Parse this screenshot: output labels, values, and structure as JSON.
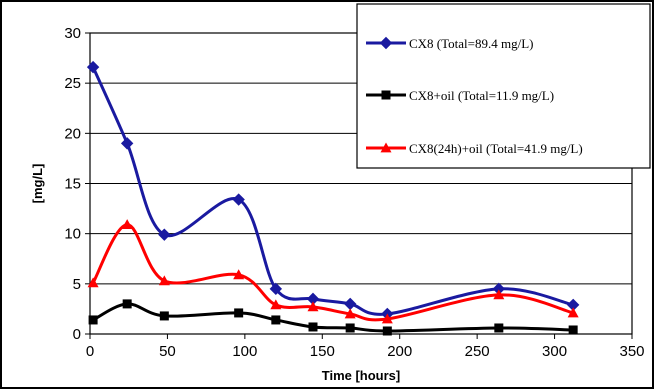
{
  "chart_data": {
    "type": "line",
    "title": "",
    "xlabel": "Time [hours]",
    "ylabel": "[mg/L]",
    "xlim": [
      0,
      350
    ],
    "ylim": [
      0,
      30
    ],
    "x_ticks": [
      0,
      50,
      100,
      150,
      200,
      250,
      300,
      350
    ],
    "y_ticks": [
      0,
      5,
      10,
      15,
      20,
      25,
      30
    ],
    "grid": "horizontal",
    "legend_placement": "top-right",
    "series": [
      {
        "name": "CX8 (Total=89.4 mg/L)",
        "color": "#1a1aa0",
        "marker": "diamond",
        "x": [
          2,
          24,
          48,
          96,
          120,
          144,
          168,
          192,
          264,
          312
        ],
        "y": [
          26.6,
          19.0,
          9.9,
          13.4,
          4.5,
          3.5,
          3.0,
          2.0,
          4.5,
          2.9
        ]
      },
      {
        "name": "CX8+oil (Total=11.9 mg/L)",
        "color": "#000000",
        "marker": "square",
        "x": [
          2,
          24,
          48,
          96,
          120,
          144,
          168,
          192,
          264,
          312
        ],
        "y": [
          1.4,
          3.0,
          1.8,
          2.1,
          1.4,
          0.7,
          0.6,
          0.3,
          0.6,
          0.4
        ]
      },
      {
        "name": "CX8(24h)+oil (Total=41.9 mg/L)",
        "color": "#ff0000",
        "marker": "triangle",
        "x": [
          2,
          24,
          48,
          96,
          120,
          144,
          168,
          192,
          264,
          312
        ],
        "y": [
          5.1,
          10.9,
          5.3,
          5.9,
          2.9,
          2.7,
          2.0,
          1.5,
          3.9,
          2.1
        ]
      }
    ]
  }
}
